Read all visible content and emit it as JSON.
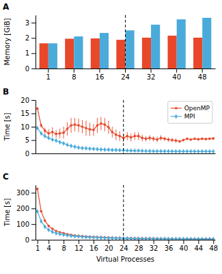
{
  "chart_data": [
    {
      "type": "bar",
      "title": "A",
      "categories": [
        1,
        8,
        16,
        24,
        32,
        40,
        48
      ],
      "series": [
        {
          "color": "#E8472A",
          "values": [
            1.65,
            1.95,
            1.97,
            1.88,
            2.02,
            2.15,
            2.02
          ]
        },
        {
          "color": "#4AABDB",
          "values": [
            1.65,
            2.1,
            2.33,
            2.5,
            2.87,
            3.22,
            3.32
          ]
        }
      ],
      "ylabel": "Memory [GiB]",
      "ylim": [
        0,
        3.5
      ],
      "yticks": [
        0,
        1,
        2,
        3
      ],
      "vline": 24
    },
    {
      "type": "line",
      "title": "B",
      "x": [
        1,
        2,
        3,
        4,
        5,
        6,
        7,
        8,
        9,
        10,
        11,
        12,
        13,
        14,
        15,
        16,
        17,
        18,
        19,
        20,
        21,
        22,
        23,
        24,
        25,
        26,
        27,
        28,
        29,
        30,
        31,
        32,
        33,
        34,
        35,
        36,
        37,
        38,
        39,
        40,
        41,
        42,
        43,
        44,
        45,
        46,
        47,
        48
      ],
      "series": [
        {
          "name": "OpenMP",
          "color": "#E8472A",
          "marker": "circle",
          "line_style": "solid",
          "values": [
            16.8,
            10.5,
            8.5,
            7.5,
            8.0,
            7.3,
            7.5,
            7.8,
            9.2,
            10.5,
            10.8,
            10.5,
            10.0,
            9.5,
            9.0,
            8.8,
            10.5,
            11.2,
            10.8,
            9.8,
            8.0,
            7.0,
            6.5,
            5.8,
            6.5,
            6.0,
            6.5,
            6.5,
            5.8,
            5.5,
            5.8,
            5.5,
            5.2,
            5.8,
            5.5,
            5.2,
            5.0,
            4.8,
            4.5,
            5.0,
            5.5,
            5.2,
            5.5,
            5.3,
            5.5,
            5.4,
            5.5,
            5.6
          ],
          "errors": [
            0.5,
            0.8,
            1.2,
            1.5,
            1.8,
            1.5,
            1.8,
            2.2,
            2.5,
            2.8,
            2.5,
            2.5,
            2.5,
            2.8,
            2.5,
            2.2,
            2.8,
            2.5,
            2.5,
            2.5,
            2.0,
            2.0,
            1.8,
            1.5,
            1.5,
            1.5,
            1.5,
            1.5,
            1.2,
            1.0,
            1.0,
            1.0,
            1.0,
            1.0,
            0.8,
            0.8,
            0.8,
            0.8,
            0.5,
            0.5,
            0.5,
            0.5,
            0.5,
            0.5,
            0.5,
            0.5,
            0.5,
            0.5
          ]
        },
        {
          "name": "MPI",
          "color": "#4AABDB",
          "marker": "diamond",
          "line_style": "solid",
          "values": [
            9.5,
            7.5,
            6.5,
            5.8,
            5.2,
            4.8,
            4.2,
            3.8,
            3.2,
            2.8,
            2.5,
            2.2,
            2.0,
            1.9,
            1.8,
            1.7,
            1.6,
            1.5,
            1.4,
            1.4,
            1.3,
            1.3,
            1.2,
            1.15,
            1.1,
            1.05,
            1.0,
            1.0,
            0.95,
            0.9,
            0.9,
            0.85,
            0.85,
            0.85,
            0.82,
            0.82,
            0.8,
            0.8,
            0.8,
            0.78,
            0.78,
            0.78,
            0.76,
            0.76,
            0.76,
            0.75,
            0.75,
            0.75
          ]
        }
      ],
      "ylabel": "Time [s]",
      "xlim": [
        0.5,
        48.5
      ],
      "ylim": [
        0,
        20
      ],
      "yticks": [
        0,
        5,
        10,
        15,
        20
      ],
      "tick_labels": "y",
      "legend": "upper right",
      "vline": 24
    },
    {
      "type": "line",
      "title": "C",
      "x": [
        1,
        2,
        3,
        4,
        5,
        6,
        7,
        8,
        9,
        10,
        11,
        12,
        13,
        14,
        15,
        16,
        17,
        18,
        19,
        20,
        21,
        22,
        23,
        24,
        25,
        26,
        27,
        28,
        29,
        30,
        31,
        32,
        33,
        34,
        35,
        36,
        37,
        38,
        39,
        40,
        41,
        42,
        43,
        44,
        45,
        46,
        47,
        48
      ],
      "series": [
        {
          "color": "#E8472A",
          "marker": "circle",
          "line_style": "solid",
          "values": [
            325,
            182,
            122,
            88,
            70,
            56,
            48,
            42,
            36,
            31,
            27,
            25,
            23,
            21,
            19,
            18,
            17,
            16,
            15,
            14,
            13,
            12,
            11.5,
            11,
            10.5,
            10,
            9.5,
            9,
            8.5,
            8.5,
            8,
            8,
            7.5,
            7.5,
            7,
            7,
            6.5,
            6.5,
            6.5,
            6,
            6,
            5.8,
            5.5,
            5.5,
            5.2,
            5.2,
            5.0,
            5.0
          ],
          "errors": [
            6,
            4,
            4,
            3,
            3,
            3,
            2,
            2,
            2,
            2,
            1.5,
            1.5,
            1.5,
            1.5,
            1,
            1,
            1,
            1,
            1,
            1,
            1,
            1,
            0.8,
            0.8,
            0.8,
            0.8,
            0.8,
            0.5,
            0.5,
            0.5,
            0.5,
            0.5,
            0.5,
            0.5,
            0.5,
            0.5,
            0.3,
            0.3,
            0.3,
            0.3,
            0.3,
            0.3,
            0.3,
            0.3,
            0.3,
            0.3,
            0.3,
            0.3
          ]
        },
        {
          "color": "#4AABDB",
          "marker": "diamond",
          "line_style": "solid",
          "values": [
            182,
            118,
            83,
            63,
            50,
            42,
            37,
            32,
            28,
            25,
            22,
            21,
            19,
            17,
            16,
            15,
            14,
            13,
            12,
            11,
            10.5,
            10,
            9.5,
            9,
            8.5,
            8,
            8,
            7.5,
            7,
            7,
            6.5,
            6.5,
            6,
            6,
            5.8,
            5.5,
            5.5,
            5.5,
            5.2,
            5,
            5,
            4.8,
            4.8,
            4.5,
            4.5,
            4.5,
            4.3,
            4.3
          ]
        }
      ],
      "xlabel": "Virtual Processes",
      "ylabel": "Time [s]",
      "xlim": [
        0.5,
        48.5
      ],
      "xticks": [
        1,
        4,
        8,
        12,
        16,
        20,
        24,
        28,
        32,
        36,
        40,
        44,
        48
      ],
      "ylim": [
        0,
        350
      ],
      "yticks": [
        0,
        100,
        200,
        300
      ],
      "vline": 24
    }
  ]
}
